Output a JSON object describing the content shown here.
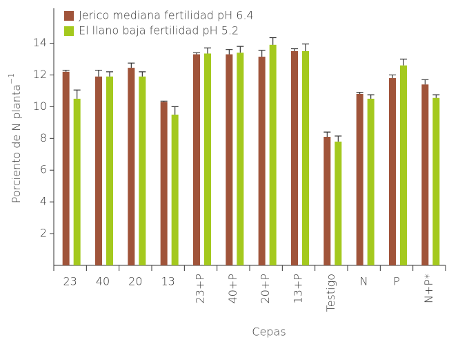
{
  "chart_data": {
    "type": "bar",
    "xlabel": "Cepas",
    "ylabel": "Porciento de N planta",
    "ylabel_superscript": "−1",
    "categories": [
      "23",
      "40",
      "20",
      "13",
      "23+P",
      "40+P",
      "20+P",
      "13+P",
      "Testigo",
      "N",
      "P",
      "N+P*"
    ],
    "series": [
      {
        "name": "Jerico mediana fertilidad pH 6.4",
        "color": "#a0543a",
        "values": [
          12.2,
          11.9,
          12.45,
          10.3,
          13.3,
          13.3,
          13.15,
          13.5,
          8.1,
          10.8,
          11.8,
          11.4
        ],
        "errors": [
          0.1,
          0.4,
          0.3,
          0.05,
          0.1,
          0.3,
          0.4,
          0.15,
          0.3,
          0.1,
          0.2,
          0.3
        ]
      },
      {
        "name": "El llano baja fertilidad pH 5.2",
        "color": "#a4c91e",
        "values": [
          10.5,
          11.9,
          11.9,
          9.5,
          13.35,
          13.4,
          13.9,
          13.5,
          7.8,
          10.5,
          12.6,
          10.55
        ],
        "errors": [
          0.55,
          0.3,
          0.3,
          0.5,
          0.35,
          0.4,
          0.45,
          0.45,
          0.35,
          0.25,
          0.4,
          0.2
        ]
      }
    ],
    "ylim": [
      0,
      16.2
    ],
    "yticks": [
      2,
      4,
      6,
      8,
      10,
      12,
      14
    ],
    "legend": "upper left"
  }
}
